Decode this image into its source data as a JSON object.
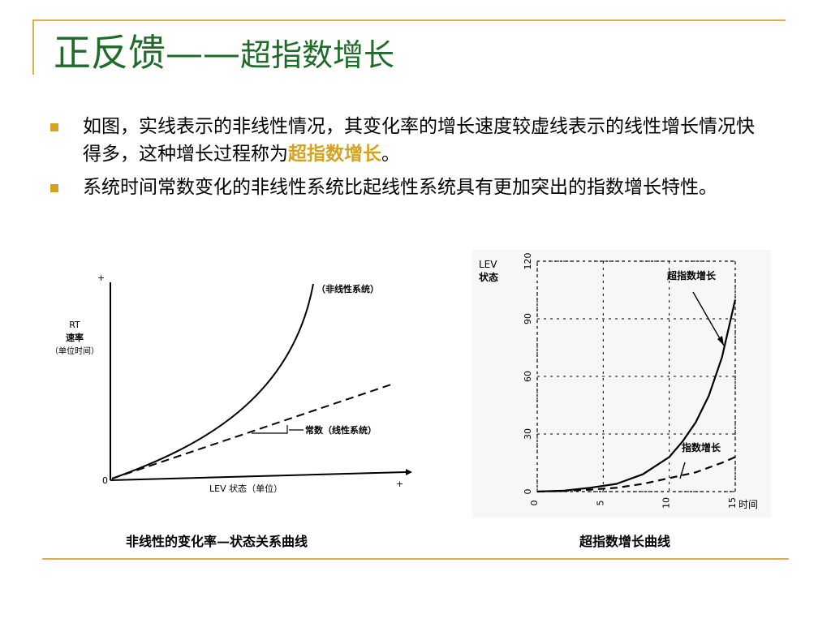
{
  "title": {
    "main": "正反馈——",
    "sub": "超指数增长"
  },
  "bullets": [
    {
      "before": "如图，实线表示的非线性情况，其变化率的增长速度较虚线表示的线性增长情况快得多，这种增长过程称为",
      "highlight": "超指数增长",
      "after": "。"
    },
    {
      "before": "系统时间常数变化的非线性系统比起线性系统具有更加突出的指数增长特性。",
      "highlight": "",
      "after": ""
    }
  ],
  "colors": {
    "title": "#1f6b2a",
    "accent": "#d4a324",
    "rule": "#d9b04a"
  },
  "figure_left": {
    "y_axis_label": [
      "RT",
      "速率",
      "（单位时间）"
    ],
    "x_axis_label": "LEV  状态（单位）",
    "origin": "0",
    "plus_y": "+",
    "plus_x": "+",
    "curve_label": "（非线性系统）",
    "line_label": "常数（线性系统）",
    "caption": "非线性的变化率—状态关系曲线"
  },
  "chart_data": {
    "type": "line",
    "x_label": "时间",
    "y_label": [
      "LEV",
      "状态"
    ],
    "xlim": [
      0,
      15
    ],
    "ylim": [
      0,
      120
    ],
    "x_ticks": [
      "0",
      "5",
      "10",
      "15"
    ],
    "y_ticks": [
      "0",
      "30",
      "60",
      "90",
      "120"
    ],
    "grid": true,
    "series": [
      {
        "name": "超指数增长",
        "style": "solid",
        "x": [
          0,
          2,
          4,
          6,
          8,
          10,
          11,
          12,
          13,
          14,
          15
        ],
        "y": [
          0,
          0.5,
          2,
          4,
          9,
          18,
          26,
          36,
          50,
          70,
          100
        ]
      },
      {
        "name": "指数增长",
        "style": "dashed",
        "x": [
          0,
          2,
          4,
          6,
          8,
          10,
          12,
          14,
          15
        ],
        "y": [
          0,
          0.3,
          1,
          2,
          4,
          7,
          10,
          15,
          18
        ]
      }
    ],
    "caption": "超指数增长曲线"
  }
}
